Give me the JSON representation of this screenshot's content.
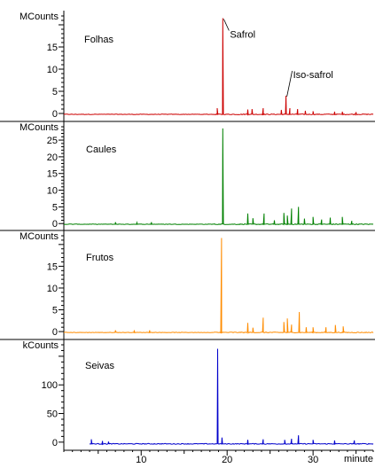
{
  "chart_data": {
    "type": "line",
    "x_axis": {
      "label": "minute",
      "range": [
        1,
        37
      ],
      "ticks": [
        10,
        20,
        30
      ],
      "tick_labels": [
        "10",
        "20",
        "30"
      ]
    },
    "panels": [
      {
        "label": "Folhas",
        "unit": "MCounts",
        "color": "#cc0000",
        "ylim": [
          -1,
          22
        ],
        "yticks": [
          0,
          5,
          10,
          15
        ],
        "ytick_labels": [
          "0",
          "5",
          "10",
          "15"
        ],
        "baseline": -0.2,
        "peaks": [
          {
            "x": 18.85,
            "y": 1.2
          },
          {
            "x": 19.5,
            "y": 21.5
          },
          {
            "x": 22.4,
            "y": 0.9
          },
          {
            "x": 22.9,
            "y": 1.0
          },
          {
            "x": 24.2,
            "y": 1.2
          },
          {
            "x": 26.3,
            "y": 0.8
          },
          {
            "x": 26.85,
            "y": 4.0
          },
          {
            "x": 27.3,
            "y": 1.2
          },
          {
            "x": 28.2,
            "y": 1.0
          },
          {
            "x": 29.1,
            "y": 0.6
          },
          {
            "x": 30.0,
            "y": 0.5
          },
          {
            "x": 32.5,
            "y": 0.4
          },
          {
            "x": 33.4,
            "y": 0.4
          },
          {
            "x": 35.0,
            "y": 0.3
          }
        ],
        "annotations": [
          {
            "text": "Safrol",
            "x": 19.5,
            "y": 21.5
          },
          {
            "text": "Iso-safrol",
            "x": 26.85,
            "y": 4.0
          }
        ]
      },
      {
        "label": "Caules",
        "unit": "MCounts",
        "color": "#008000",
        "ylim": [
          -1,
          29
        ],
        "yticks": [
          0,
          5,
          10,
          15,
          20,
          25
        ],
        "ytick_labels": [
          "0",
          "5",
          "10",
          "15",
          "20",
          "25"
        ],
        "baseline": -0.2,
        "peaks": [
          {
            "x": 7.0,
            "y": 0.4
          },
          {
            "x": 9.5,
            "y": 0.3
          },
          {
            "x": 11.2,
            "y": 0.4
          },
          {
            "x": 19.5,
            "y": 28.5
          },
          {
            "x": 22.4,
            "y": 3.0
          },
          {
            "x": 23.0,
            "y": 1.6
          },
          {
            "x": 24.3,
            "y": 3.0
          },
          {
            "x": 25.5,
            "y": 1.0
          },
          {
            "x": 26.6,
            "y": 3.2
          },
          {
            "x": 27.0,
            "y": 2.4
          },
          {
            "x": 27.5,
            "y": 4.5
          },
          {
            "x": 28.3,
            "y": 5.0
          },
          {
            "x": 29.0,
            "y": 1.5
          },
          {
            "x": 30.0,
            "y": 2.0
          },
          {
            "x": 31.0,
            "y": 1.2
          },
          {
            "x": 32.0,
            "y": 1.8
          },
          {
            "x": 33.4,
            "y": 2.0
          },
          {
            "x": 34.5,
            "y": 0.8
          }
        ]
      },
      {
        "label": "Frutos",
        "unit": "MCounts",
        "color": "#ff8c00",
        "ylim": [
          -1,
          22
        ],
        "yticks": [
          0,
          5,
          10,
          15
        ],
        "ytick_labels": [
          "0",
          "5",
          "10",
          "15"
        ],
        "baseline": -0.2,
        "peaks": [
          {
            "x": 7.0,
            "y": 0.3
          },
          {
            "x": 9.2,
            "y": 0.3
          },
          {
            "x": 11.0,
            "y": 0.3
          },
          {
            "x": 19.35,
            "y": 21.5
          },
          {
            "x": 22.4,
            "y": 2.0
          },
          {
            "x": 23.0,
            "y": 0.9
          },
          {
            "x": 24.2,
            "y": 3.2
          },
          {
            "x": 26.6,
            "y": 2.2
          },
          {
            "x": 27.0,
            "y": 3.0
          },
          {
            "x": 27.5,
            "y": 1.6
          },
          {
            "x": 28.4,
            "y": 4.5
          },
          {
            "x": 29.2,
            "y": 1.0
          },
          {
            "x": 30.0,
            "y": 1.0
          },
          {
            "x": 31.5,
            "y": 1.0
          },
          {
            "x": 32.6,
            "y": 1.5
          },
          {
            "x": 33.5,
            "y": 1.2
          }
        ]
      },
      {
        "label": "Seivas",
        "unit": "kCounts",
        "color": "#0000cc",
        "ylim": [
          -8,
          170
        ],
        "yticks": [
          0,
          50,
          100
        ],
        "ytick_labels": [
          "0",
          "50",
          "100"
        ],
        "baseline": -3,
        "start_x": 3.9,
        "peaks": [
          {
            "x": 4.2,
            "y": 5
          },
          {
            "x": 5.5,
            "y": 2
          },
          {
            "x": 6.2,
            "y": 1
          },
          {
            "x": 18.9,
            "y": 163
          },
          {
            "x": 19.4,
            "y": 8
          },
          {
            "x": 22.4,
            "y": 4
          },
          {
            "x": 24.2,
            "y": 5
          },
          {
            "x": 26.7,
            "y": 4
          },
          {
            "x": 27.5,
            "y": 6
          },
          {
            "x": 28.3,
            "y": 12
          },
          {
            "x": 30.0,
            "y": 4
          },
          {
            "x": 32.5,
            "y": 3
          },
          {
            "x": 34.8,
            "y": 3
          }
        ]
      }
    ]
  }
}
